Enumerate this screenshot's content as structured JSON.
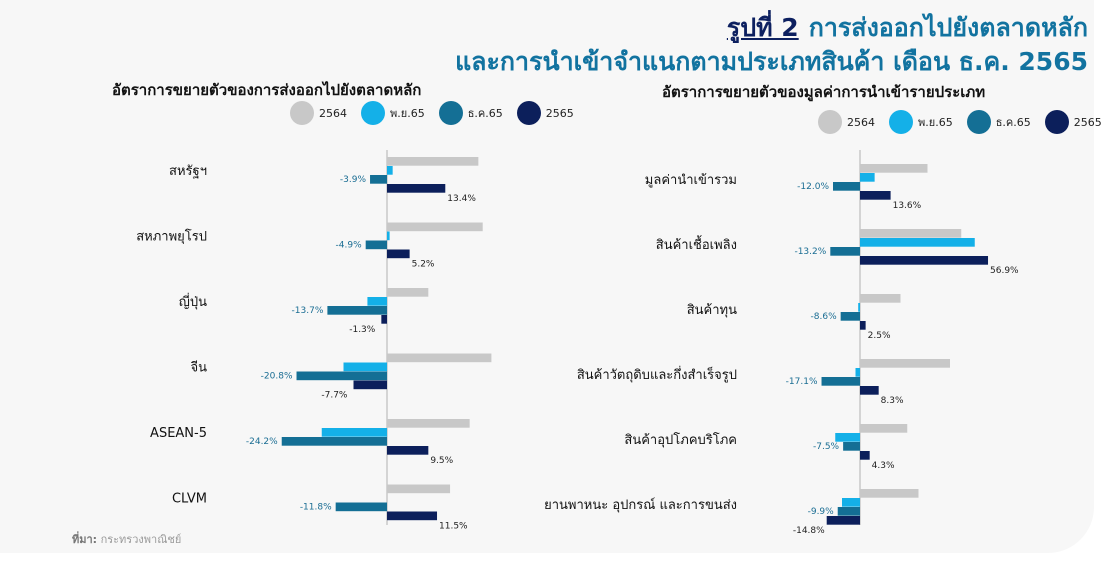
{
  "header": {
    "figure_label": "รูปที่ 2",
    "title_line1": "การส่งออกไปยังตลาดหลัก",
    "title_line2": "และการนำเข้าจำแนกตามประเภทสินค้า เดือน ธ.ค. 2565"
  },
  "legend": [
    {
      "label": "2564",
      "color": "#c8c8c8"
    },
    {
      "label": "พ.ย.65",
      "color": "#14b0e8"
    },
    {
      "label": "ธ.ค.65",
      "color": "#146f95"
    },
    {
      "label": "2565",
      "color": "#0c1f5b"
    }
  ],
  "source": {
    "label": "ที่มา:",
    "text": "กระทรวงพาณิชย์"
  },
  "chart_data": [
    {
      "type": "bar",
      "orientation": "horizontal",
      "title": "อัตราการขยายตัวของการส่งออกไปยังตลาดหลัก",
      "categories": [
        "สหรัฐฯ",
        "สหภาพยุโรป",
        "ญี่ปุ่น",
        "จีน",
        "ASEAN-5",
        "CLVM"
      ],
      "series": [
        {
          "name": "2564",
          "values": [
            21.0,
            22.0,
            9.5,
            24.0,
            19.0,
            14.5
          ]
        },
        {
          "name": "พ.ย.65",
          "values": [
            1.3,
            0.6,
            -4.5,
            -10.0,
            -15.0,
            0.0
          ]
        },
        {
          "name": "ธ.ค.65",
          "values": [
            -3.9,
            -4.9,
            -13.7,
            -20.8,
            -24.2,
            -11.8
          ]
        },
        {
          "name": "2565",
          "values": [
            13.4,
            5.2,
            -1.3,
            -7.7,
            9.5,
            11.5
          ]
        }
      ],
      "labeled_series": [
        "ธ.ค.65",
        "2565"
      ],
      "value_suffix": "%",
      "xlim": [
        -30,
        30
      ]
    },
    {
      "type": "bar",
      "orientation": "horizontal",
      "title": "อัตราการขยายตัวของมูลค่าการนำเข้ารายประเภท",
      "categories": [
        "มูลค่านำเข้ารวม",
        "สินค้าเชื้อเพลิง",
        "สินค้าทุน",
        "สินค้าวัตถุดิบและกึ่งสำเร็จรูป",
        "สินค้าอุปโภคบริโภค",
        "ยานพาหนะ อุปกรณ์ และการขนส่ง"
      ],
      "series": [
        {
          "name": "2564",
          "values": [
            30.0,
            45.0,
            18.0,
            40.0,
            21.0,
            26.0
          ]
        },
        {
          "name": "พ.ย.65",
          "values": [
            6.5,
            51.0,
            -0.8,
            -2.0,
            -11.0,
            -8.0
          ]
        },
        {
          "name": "ธ.ค.65",
          "values": [
            -12.0,
            -13.2,
            -8.6,
            -17.1,
            -7.5,
            -9.9
          ]
        },
        {
          "name": "2565",
          "values": [
            13.6,
            56.9,
            2.5,
            8.3,
            4.3,
            -14.8
          ]
        }
      ],
      "labeled_series": [
        "ธ.ค.65",
        "2565"
      ],
      "value_suffix": "%",
      "xlim": [
        -30,
        60
      ]
    }
  ]
}
